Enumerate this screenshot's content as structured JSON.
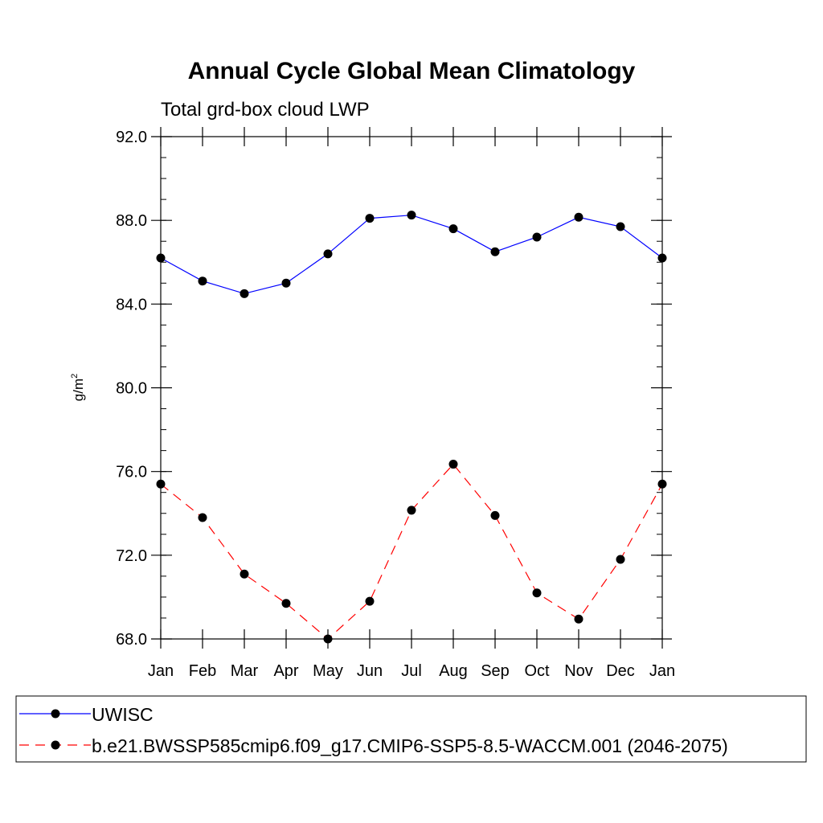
{
  "chart_data": {
    "type": "line",
    "title": "Annual Cycle Global Mean Climatology",
    "subtitle": "Total grd-box cloud LWP",
    "xlabel": "",
    "ylabel": "g/m",
    "ylabel_superscript": "2",
    "categories": [
      "Jan",
      "Feb",
      "Mar",
      "Apr",
      "May",
      "Jun",
      "Jul",
      "Aug",
      "Sep",
      "Oct",
      "Nov",
      "Dec",
      "Jan"
    ],
    "ylim": [
      68.0,
      92.0
    ],
    "yticks": [
      "68.0",
      "72.0",
      "76.0",
      "80.0",
      "84.0",
      "88.0",
      "92.0"
    ],
    "grid": false,
    "legend_position": "bottom",
    "series": [
      {
        "name": "UWISC",
        "color": "#0000ff",
        "dash": "solid",
        "values": [
          86.2,
          85.1,
          84.5,
          85.0,
          86.4,
          88.1,
          88.25,
          87.6,
          86.5,
          87.2,
          88.15,
          87.7,
          86.2
        ]
      },
      {
        "name": "b.e21.BWSSP585cmip6.f09_g17.CMIP6-SSP5-8.5-WACCM.001 (2046-2075)",
        "color": "#ff0000",
        "dash": "dashed",
        "values": [
          75.4,
          73.8,
          71.1,
          69.7,
          68.0,
          69.8,
          74.15,
          76.35,
          73.9,
          70.2,
          68.95,
          71.8,
          75.4
        ]
      }
    ]
  }
}
